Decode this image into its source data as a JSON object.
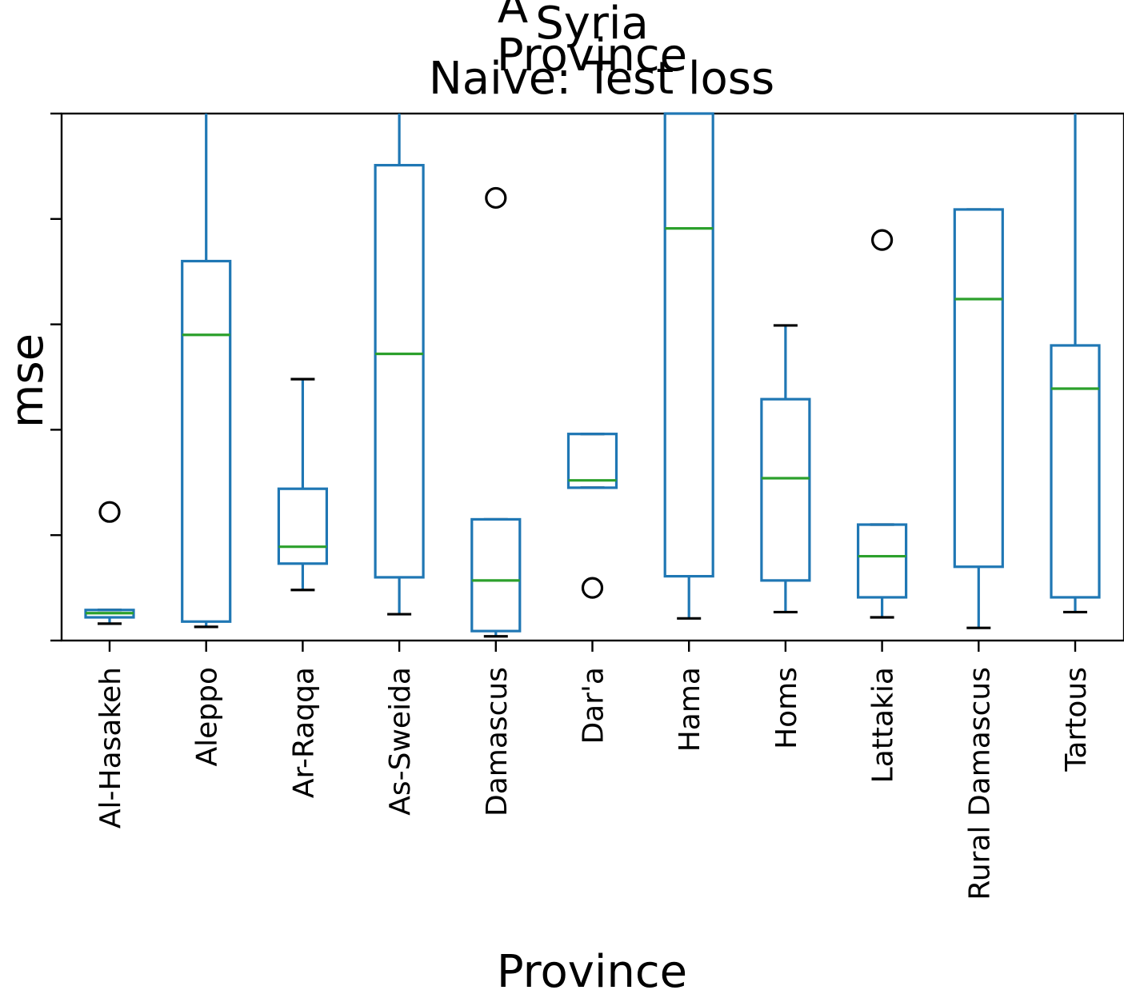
{
  "chart_data": {
    "type": "box",
    "title_lines": [
      "Syria",
      "Province",
      "Naive: Test loss"
    ],
    "title_fragment": "A",
    "xlabel": "Province",
    "ylabel": "mse",
    "y_tick_labels_shown": false,
    "ylim": [
      0,
      5
    ],
    "y_ticks": [
      0,
      1,
      2,
      3,
      4,
      5
    ],
    "grid": false,
    "categories": [
      "Al-Hasakeh",
      "Aleppo",
      "Ar-Raqqa",
      "As-Sweida",
      "Damascus",
      "Dar'a",
      "Hama",
      "Homs",
      "Lattakia",
      "Rural Damascus",
      "Tartous"
    ],
    "boxes": [
      {
        "whislo": 0.16,
        "q1": 0.22,
        "med": 0.26,
        "q3": 0.29,
        "whishi": 0.29,
        "fliers": [
          1.22
        ]
      },
      {
        "whislo": 0.13,
        "q1": 0.18,
        "med": 2.9,
        "q3": 3.6,
        "whishi": 5.2,
        "fliers": []
      },
      {
        "whislo": 0.48,
        "q1": 0.73,
        "med": 0.89,
        "q3": 1.44,
        "whishi": 2.48,
        "fliers": []
      },
      {
        "whislo": 0.25,
        "q1": 0.6,
        "med": 2.72,
        "q3": 4.51,
        "whishi": 5.2,
        "fliers": []
      },
      {
        "whislo": 0.04,
        "q1": 0.09,
        "med": 0.57,
        "q3": 1.15,
        "whishi": 1.15,
        "fliers": [
          4.2
        ]
      },
      {
        "whislo": 1.45,
        "q1": 1.45,
        "med": 1.52,
        "q3": 1.96,
        "whishi": 1.96,
        "fliers": [
          0.5
        ]
      },
      {
        "whislo": 0.21,
        "q1": 0.61,
        "med": 3.91,
        "q3": 5.2,
        "whishi": 5.2,
        "fliers": []
      },
      {
        "whislo": 0.27,
        "q1": 0.57,
        "med": 1.54,
        "q3": 2.29,
        "whishi": 2.99,
        "fliers": []
      },
      {
        "whislo": 0.22,
        "q1": 0.41,
        "med": 0.8,
        "q3": 1.1,
        "whishi": 1.1,
        "fliers": [
          3.8
        ]
      },
      {
        "whislo": 0.12,
        "q1": 0.7,
        "med": 3.24,
        "q3": 4.09,
        "whishi": 4.09,
        "fliers": []
      },
      {
        "whislo": 0.27,
        "q1": 0.41,
        "med": 2.39,
        "q3": 2.8,
        "whishi": 5.2,
        "fliers": []
      }
    ]
  }
}
